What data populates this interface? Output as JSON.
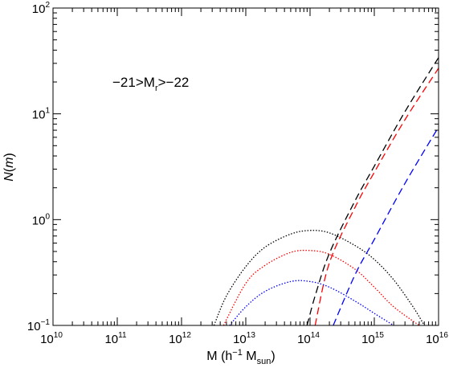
{
  "chart_data": {
    "type": "line",
    "x_scale": "log",
    "y_scale": "log",
    "xlim": [
      10000000000.0,
      1e+16
    ],
    "ylim": [
      0.1,
      100
    ],
    "xlabel": {
      "base": "M (h",
      "sup": "−1",
      "mid": " M",
      "sub": "sun",
      "end": ")"
    },
    "ylabel": {
      "a": "N",
      "b": "(",
      "c": "m",
      "d": ")"
    },
    "annotation": {
      "pre": "−21>M",
      "sub": "r",
      "post": ">−22"
    },
    "x_ticks": [
      {
        "value": 10000000000.0,
        "base": "10",
        "exp": "10"
      },
      {
        "value": 100000000000.0,
        "base": "10",
        "exp": "11"
      },
      {
        "value": 1000000000000.0,
        "base": "10",
        "exp": "12"
      },
      {
        "value": 10000000000000.0,
        "base": "10",
        "exp": "13"
      },
      {
        "value": 100000000000000.0,
        "base": "10",
        "exp": "14"
      },
      {
        "value": 1000000000000000.0,
        "base": "10",
        "exp": "15"
      },
      {
        "value": 1e+16,
        "base": "10",
        "exp": "16"
      }
    ],
    "y_ticks": [
      {
        "value": 0.1,
        "base": "10",
        "exp": "−1"
      },
      {
        "value": 1,
        "base": "10",
        "exp": "0"
      },
      {
        "value": 10,
        "base": "10",
        "exp": "1"
      },
      {
        "value": 100,
        "base": "10",
        "exp": "2"
      }
    ],
    "series": [
      {
        "color": "#000000",
        "style": "dotted",
        "x": [
          3200000000000.0,
          5000000000000.0,
          10000000000000.0,
          20000000000000.0,
          50000000000000.0,
          100000000000000.0,
          200000000000000.0,
          500000000000000.0,
          1000000000000000.0,
          2000000000000000.0,
          4000000000000000.0,
          6000000000000000.0
        ],
        "y": [
          0.1,
          0.19,
          0.36,
          0.55,
          0.73,
          0.79,
          0.75,
          0.57,
          0.42,
          0.27,
          0.15,
          0.1
        ]
      },
      {
        "color": "#ff0000",
        "style": "dotted",
        "x": [
          4500000000000.0,
          10000000000000.0,
          20000000000000.0,
          50000000000000.0,
          100000000000000.0,
          200000000000000.0,
          500000000000000.0,
          1000000000000000.0,
          2000000000000000.0,
          5000000000000000.0
        ],
        "y": [
          0.1,
          0.25,
          0.37,
          0.49,
          0.51,
          0.47,
          0.34,
          0.23,
          0.15,
          0.1
        ]
      },
      {
        "color": "#0000ff",
        "style": "dotted",
        "x": [
          5600000000000.0,
          10000000000000.0,
          20000000000000.0,
          50000000000000.0,
          100000000000000.0,
          200000000000000.0,
          500000000000000.0,
          1000000000000000.0,
          2000000000000000.0,
          3200000000000000.0
        ],
        "y": [
          0.1,
          0.15,
          0.21,
          0.26,
          0.26,
          0.23,
          0.17,
          0.13,
          0.1,
          0.084
        ]
      },
      {
        "color": "#000000",
        "style": "dashed",
        "x": [
          90000000000000.0,
          120000000000000.0,
          200000000000000.0,
          500000000000000.0,
          1000000000000000.0,
          3000000000000000.0,
          1e+16
        ],
        "y": [
          0.1,
          0.19,
          0.48,
          1.5,
          3.2,
          10.5,
          34
        ]
      },
      {
        "color": "#ff0000",
        "style": "dashed",
        "x": [
          120000000000000.0,
          200000000000000.0,
          500000000000000.0,
          1000000000000000.0,
          3000000000000000.0,
          1e+16
        ],
        "y": [
          0.1,
          0.39,
          1.3,
          2.8,
          8.8,
          27
        ]
      },
      {
        "color": "#0000ff",
        "style": "dashed",
        "x": [
          230000000000000.0,
          500000000000000.0,
          1000000000000000.0,
          3000000000000000.0,
          1e+16
        ],
        "y": [
          0.1,
          0.3,
          0.65,
          2.2,
          7.5
        ]
      }
    ]
  }
}
